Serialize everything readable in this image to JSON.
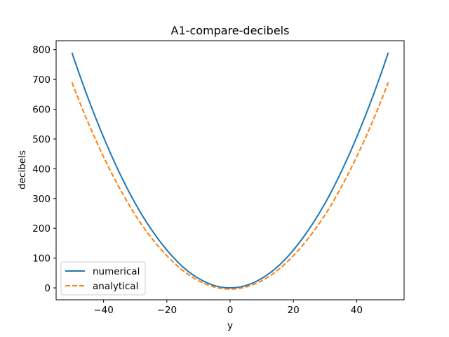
{
  "chart_data": {
    "type": "line",
    "title": "A1-compare-decibels",
    "xlabel": "y",
    "ylabel": "decibels",
    "xlim": [
      -55,
      55
    ],
    "ylim": [
      -40,
      830
    ],
    "xticks": [
      -40,
      -20,
      0,
      20,
      40
    ],
    "xtick_labels": [
      "−40",
      "−20",
      "0",
      "20",
      "40"
    ],
    "yticks": [
      0,
      100,
      200,
      300,
      400,
      500,
      600,
      700,
      800
    ],
    "ytick_labels": [
      "0",
      "100",
      "200",
      "300",
      "400",
      "500",
      "600",
      "700",
      "800"
    ],
    "grid": false,
    "legend_position": "lower-left",
    "series": [
      {
        "name": "numerical",
        "color": "#1f77b4",
        "style": "solid",
        "x": [
          -50,
          -45,
          -40,
          -35,
          -30,
          -25,
          -20,
          -15,
          -10,
          -5,
          0,
          5,
          10,
          15,
          20,
          25,
          30,
          35,
          40,
          45,
          50
        ],
        "y": [
          790,
          640,
          506,
          387,
          284,
          198,
          127,
          71,
          32,
          8,
          0,
          8,
          32,
          71,
          127,
          198,
          284,
          387,
          506,
          640,
          790
        ]
      },
      {
        "name": "analytical",
        "color": "#ff7f0e",
        "style": "dashed",
        "x": [
          -50,
          -45,
          -40,
          -35,
          -30,
          -25,
          -20,
          -15,
          -10,
          -5,
          0,
          5,
          10,
          15,
          20,
          25,
          30,
          35,
          40,
          45,
          50
        ],
        "y": [
          690,
          558,
          440,
          336,
          245,
          170,
          108,
          59,
          24,
          3,
          -4,
          3,
          24,
          59,
          108,
          170,
          245,
          336,
          440,
          558,
          690
        ]
      }
    ]
  }
}
